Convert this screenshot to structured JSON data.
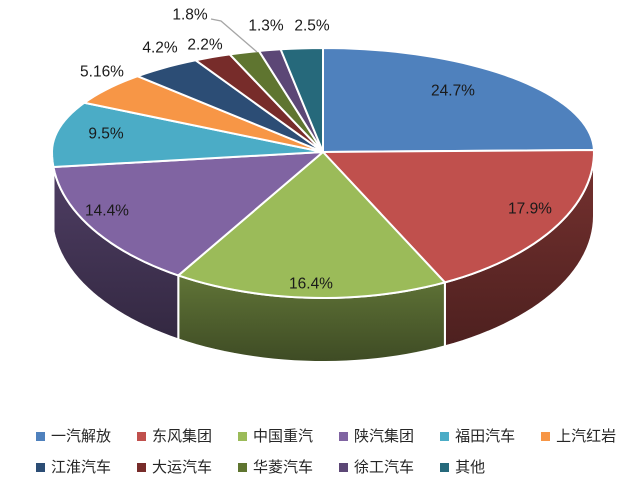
{
  "chart_data": {
    "type": "pie",
    "style": "3d-pie",
    "title": "",
    "legend_position": "bottom",
    "data_labels": "percent",
    "slices": [
      {
        "label": "一汽解放",
        "value": 24.7,
        "display": "24.7%",
        "color": "#4F81BD"
      },
      {
        "label": "东风集团",
        "value": 17.9,
        "display": "17.9%",
        "color": "#C0504D"
      },
      {
        "label": "中国重汽",
        "value": 16.4,
        "display": "16.4%",
        "color": "#9BBB59"
      },
      {
        "label": "陕汽集团",
        "value": 14.4,
        "display": "14.4%",
        "color": "#8064A2"
      },
      {
        "label": "福田汽车",
        "value": 9.5,
        "display": "9.5%",
        "color": "#4BACC6"
      },
      {
        "label": "上汽红岩",
        "value": 5.16,
        "display": "5.16%",
        "color": "#F79646"
      },
      {
        "label": "江淮汽车",
        "value": 4.2,
        "display": "4.2%",
        "color": "#2C4D75"
      },
      {
        "label": "大运汽车",
        "value": 2.2,
        "display": "2.2%",
        "color": "#772C2A"
      },
      {
        "label": "华菱汽车",
        "value": 1.8,
        "display": "1.8%",
        "color": "#5F7530"
      },
      {
        "label": "徐工汽车",
        "value": 1.3,
        "display": "1.3%",
        "color": "#5C4776"
      },
      {
        "label": "其他",
        "value": 2.5,
        "display": "2.5%",
        "color": "#26697B"
      }
    ],
    "legend_rows": [
      [
        0,
        1,
        2,
        3,
        4,
        5
      ],
      [
        6,
        7,
        8,
        9,
        10
      ]
    ],
    "leader_line_color": "#A6A6A6",
    "slice_border_color": "#FFFFFF"
  }
}
